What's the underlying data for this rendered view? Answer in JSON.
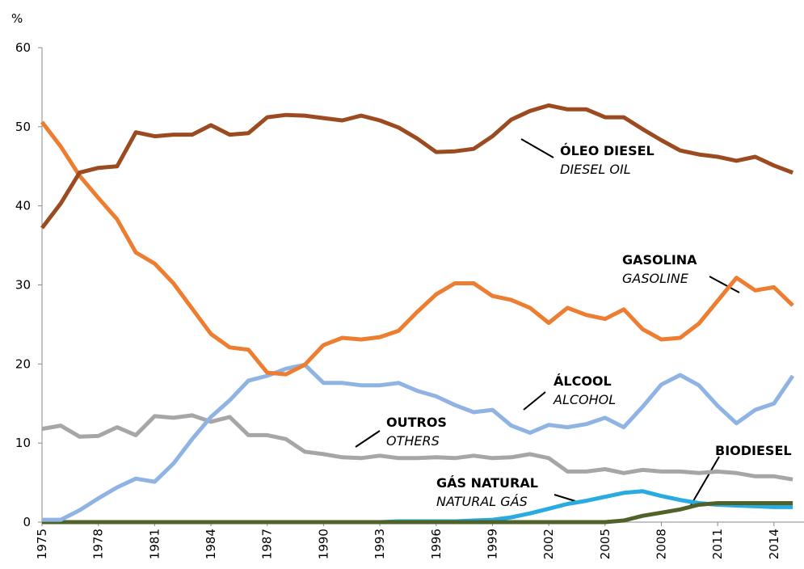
{
  "chart_data": {
    "type": "line",
    "ylabel": "%",
    "x": [
      1975,
      1976,
      1977,
      1978,
      1979,
      1980,
      1981,
      1982,
      1983,
      1984,
      1985,
      1986,
      1987,
      1988,
      1989,
      1990,
      1991,
      1992,
      1993,
      1994,
      1995,
      1996,
      1997,
      1998,
      1999,
      2000,
      2001,
      2002,
      2003,
      2004,
      2005,
      2006,
      2007,
      2008,
      2009,
      2010,
      2011,
      2012,
      2013,
      2014,
      2015
    ],
    "xlim": [
      1975,
      2015.6
    ],
    "xticks": [
      1975,
      1978,
      1981,
      1984,
      1987,
      1990,
      1993,
      1996,
      1999,
      2002,
      2005,
      2008,
      2011,
      2014
    ],
    "ylim": [
      0,
      60
    ],
    "yticks": [
      0,
      10,
      20,
      30,
      40,
      50,
      60
    ],
    "series": [
      {
        "name": "ÓLEO DIESEL",
        "name_en": "DIESEL OIL",
        "color": "#9c4a1f",
        "values": [
          37.2,
          40.3,
          44.2,
          44.8,
          45,
          49.3,
          48.8,
          49,
          49,
          50.2,
          49,
          49.2,
          51.2,
          51.5,
          51.4,
          51.1,
          50.8,
          51.4,
          50.8,
          49.9,
          48.5,
          46.8,
          46.9,
          47.2,
          48.8,
          50.9,
          52,
          52.7,
          52.2,
          52.2,
          51.2,
          51.2,
          49.7,
          48.3,
          47,
          46.5,
          46.2,
          45.7,
          46.2,
          45.1,
          44.2
        ]
      },
      {
        "name": "GASOLINA",
        "name_en": "GASOLINE",
        "color": "#ed7d31",
        "values": [
          50.6,
          47.5,
          43.8,
          41,
          38.3,
          34.1,
          32.7,
          30.2,
          27,
          23.8,
          22.1,
          21.8,
          18.9,
          18.7,
          19.9,
          22.4,
          23.3,
          23.1,
          23.4,
          24.2,
          26.6,
          28.8,
          30.2,
          30.2,
          28.6,
          28.1,
          27.1,
          25.2,
          27.1,
          26.2,
          25.7,
          26.9,
          24.4,
          23.1,
          23.3,
          25.1,
          28,
          30.9,
          29.3,
          29.7,
          27.4
        ]
      },
      {
        "name": "ÁLCOOL",
        "name_en": "ALCOHOL",
        "color": "#8fb4e3",
        "values": [
          0.3,
          0.3,
          1.5,
          3,
          4.4,
          5.5,
          5.1,
          7.4,
          10.5,
          13.3,
          15.4,
          17.9,
          18.5,
          19.4,
          19.9,
          17.6,
          17.6,
          17.3,
          17.3,
          17.6,
          16.6,
          15.9,
          14.8,
          13.9,
          14.2,
          12.2,
          11.3,
          12.3,
          12,
          12.4,
          13.2,
          12,
          14.6,
          17.4,
          18.6,
          17.3,
          14.7,
          12.5,
          14.2,
          15,
          18.5
        ]
      },
      {
        "name": "OUTROS",
        "name_en": "OTHERS",
        "color": "#a6a6a6",
        "values": [
          11.8,
          12.2,
          10.8,
          10.9,
          12,
          11,
          13.4,
          13.2,
          13.5,
          12.7,
          13.3,
          11,
          11,
          10.5,
          8.9,
          8.6,
          8.2,
          8.1,
          8.4,
          8.1,
          8.1,
          8.2,
          8.1,
          8.4,
          8.1,
          8.2,
          8.6,
          8.1,
          6.4,
          6.4,
          6.7,
          6.2,
          6.6,
          6.4,
          6.4,
          6.2,
          6.4,
          6.2,
          5.8,
          5.8,
          5.4
        ]
      },
      {
        "name": "GÁS NATURAL",
        "name_en": "NATURAL GÁS",
        "color": "#29abe2",
        "values": [
          0,
          0,
          0,
          0,
          0,
          0,
          0,
          0,
          0,
          0,
          0,
          0,
          0,
          0,
          0,
          0,
          0,
          0,
          0,
          0.1,
          0.1,
          0.1,
          0.1,
          0.2,
          0.3,
          0.6,
          1.1,
          1.7,
          2.3,
          2.7,
          3.2,
          3.7,
          3.9,
          3.3,
          2.8,
          2.4,
          2.2,
          2.1,
          2,
          1.9,
          1.9
        ]
      },
      {
        "name": "BIODIESEL",
        "color": "#4f6228",
        "values": [
          0,
          0,
          0,
          0,
          0,
          0,
          0,
          0,
          0,
          0,
          0,
          0,
          0,
          0,
          0,
          0,
          0,
          0,
          0,
          0,
          0,
          0,
          0,
          0,
          0,
          0,
          0,
          0,
          0,
          0,
          0,
          0.2,
          0.8,
          1.2,
          1.6,
          2.2,
          2.4,
          2.4,
          2.4,
          2.4,
          2.4
        ]
      }
    ]
  }
}
